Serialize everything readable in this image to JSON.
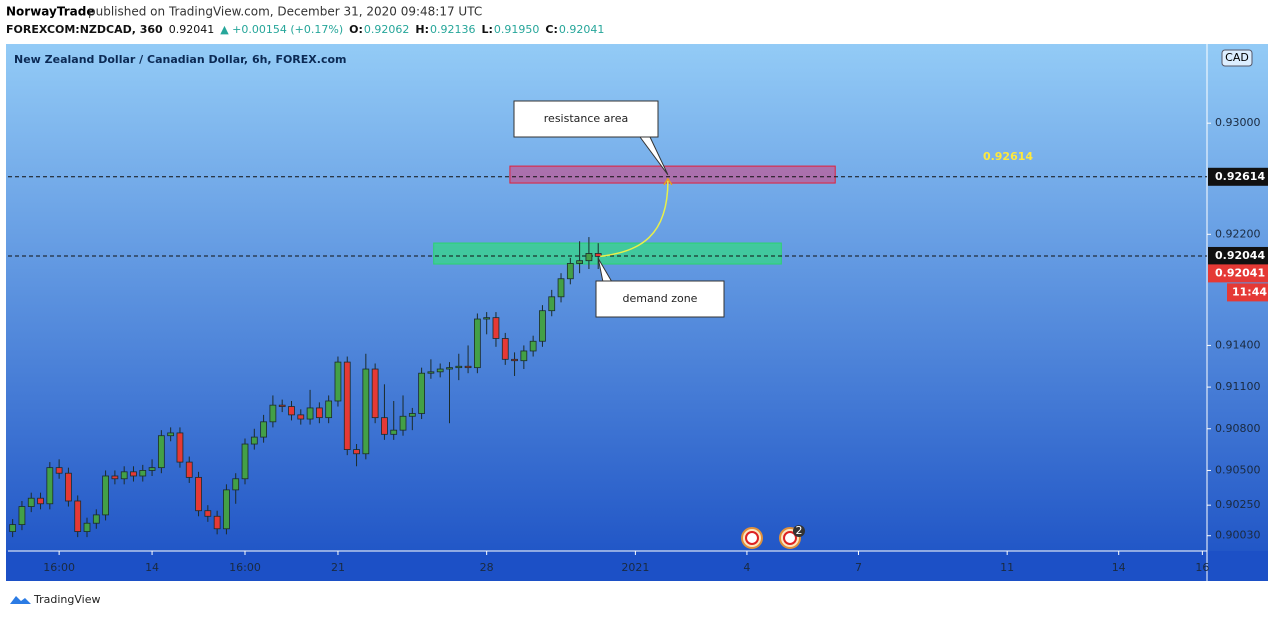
{
  "header": {
    "publisher": "NorwayTrade",
    "published": "published on TradingView.com, December 31, 2020 09:48:17 UTC",
    "symbol": "FOREXCOM:NZDCAD, 360",
    "last": "0.92041",
    "change": "▲ +0.00154 (+0.17%)",
    "o_label": "O:",
    "o": "0.92062",
    "h_label": "H:",
    "h": "0.92136",
    "l_label": "L:",
    "l": "0.91950",
    "c_label": "C:",
    "c": "0.92041"
  },
  "footer": {
    "brand": "TradingView"
  },
  "chart_data": {
    "type": "candlestick",
    "title": "New Zealand Dollar / Canadian Dollar, 6h, FOREX.com",
    "currency": "CAD",
    "up_color": "#43a047",
    "down_color": "#e53935",
    "open": [
      0.9006,
      0.9011,
      0.9024,
      0.903,
      0.9026,
      0.9052,
      0.9048,
      0.9028,
      0.9006,
      0.9012,
      0.9018,
      0.9046,
      0.9044,
      0.9049,
      0.9046,
      0.905,
      0.9052,
      0.9075,
      0.9077,
      0.9056,
      0.9045,
      0.9021,
      0.9017,
      0.9008,
      0.9036,
      0.9044,
      0.9069,
      0.9074,
      0.9085,
      0.9097,
      0.9096,
      0.909,
      0.9087,
      0.9095,
      0.9088,
      0.91,
      0.9128,
      0.9065,
      0.9062,
      0.9123,
      0.9088,
      0.9076,
      0.9079,
      0.9089,
      0.9091,
      0.912,
      0.9121,
      0.9123,
      0.9124,
      0.9125,
      0.9124,
      0.9159,
      0.916,
      0.9145,
      0.913,
      0.9129,
      0.9136,
      0.9143,
      0.9165,
      0.9175,
      0.9188,
      0.9199,
      0.9201,
      0.92062
    ],
    "high": [
      0.9015,
      0.9028,
      0.9034,
      0.9034,
      0.9056,
      0.9058,
      0.9052,
      0.9032,
      0.9016,
      0.9022,
      0.905,
      0.905,
      0.9053,
      0.9053,
      0.9054,
      0.9058,
      0.9079,
      0.9081,
      0.9081,
      0.906,
      0.9049,
      0.9025,
      0.9021,
      0.904,
      0.9048,
      0.9073,
      0.908,
      0.909,
      0.9104,
      0.9101,
      0.91,
      0.9094,
      0.9108,
      0.9099,
      0.9104,
      0.9132,
      0.9132,
      0.9069,
      0.9134,
      0.9127,
      0.9112,
      0.91,
      0.9104,
      0.9095,
      0.9124,
      0.913,
      0.9127,
      0.9128,
      0.9134,
      0.914,
      0.9163,
      0.9164,
      0.9164,
      0.9149,
      0.9135,
      0.914,
      0.9147,
      0.9169,
      0.918,
      0.9192,
      0.9203,
      0.9215,
      0.9218,
      0.92136
    ],
    "low": [
      0.9002,
      0.9007,
      0.902,
      0.9022,
      0.9022,
      0.9044,
      0.9024,
      0.9002,
      0.9002,
      0.9008,
      0.9014,
      0.904,
      0.904,
      0.9042,
      0.9042,
      0.9046,
      0.9048,
      0.9071,
      0.9052,
      0.9041,
      0.9017,
      0.9013,
      0.9004,
      0.9004,
      0.9026,
      0.904,
      0.9065,
      0.907,
      0.9081,
      0.9092,
      0.9086,
      0.9083,
      0.9083,
      0.9084,
      0.9084,
      0.9096,
      0.9061,
      0.9053,
      0.9058,
      0.9084,
      0.9072,
      0.9072,
      0.9075,
      0.9079,
      0.9087,
      0.9116,
      0.9117,
      0.9084,
      0.9115,
      0.912,
      0.912,
      0.9148,
      0.9139,
      0.9126,
      0.9118,
      0.9123,
      0.9132,
      0.9139,
      0.9161,
      0.9171,
      0.9184,
      0.9192,
      0.9195,
      0.9195
    ],
    "close": [
      0.9011,
      0.9024,
      0.903,
      0.9026,
      0.9052,
      0.9048,
      0.9028,
      0.9006,
      0.9012,
      0.9018,
      0.9046,
      0.9044,
      0.9049,
      0.9046,
      0.905,
      0.9052,
      0.9075,
      0.9077,
      0.9056,
      0.9045,
      0.9021,
      0.9017,
      0.9008,
      0.9036,
      0.9044,
      0.9069,
      0.9074,
      0.9085,
      0.9097,
      0.9096,
      0.909,
      0.9087,
      0.9095,
      0.9088,
      0.91,
      0.9128,
      0.9065,
      0.9062,
      0.9123,
      0.9088,
      0.9076,
      0.9079,
      0.9089,
      0.9091,
      0.912,
      0.9121,
      0.9123,
      0.9124,
      0.9125,
      0.9124,
      0.9159,
      0.916,
      0.9145,
      0.913,
      0.9129,
      0.9136,
      0.9143,
      0.9165,
      0.9175,
      0.9188,
      0.9199,
      0.9201,
      0.92062,
      0.92041
    ],
    "xlim": [
      -0.5,
      128.5
    ],
    "xticks": [
      {
        "value": 5,
        "label": "16:00"
      },
      {
        "value": 15,
        "label": "14"
      },
      {
        "value": 25,
        "label": "16:00"
      },
      {
        "value": 35,
        "label": "21"
      },
      {
        "value": 51,
        "label": "28"
      },
      {
        "value": 67,
        "label": "2021"
      },
      {
        "value": 79,
        "label": "4"
      },
      {
        "value": 91,
        "label": "7"
      },
      {
        "value": 107,
        "label": "11"
      },
      {
        "value": 119,
        "label": "14"
      },
      {
        "value": 128,
        "label": "16"
      }
    ],
    "ylim": [
      0.8992,
      0.9357
    ],
    "yticks": [
      {
        "value": 0.9003,
        "label": "0.90030"
      },
      {
        "value": 0.9025,
        "label": "0.90250"
      },
      {
        "value": 0.905,
        "label": "0.90500"
      },
      {
        "value": 0.908,
        "label": "0.90800"
      },
      {
        "value": 0.911,
        "label": "0.91100"
      },
      {
        "value": 0.914,
        "label": "0.91400"
      },
      {
        "value": 0.922,
        "label": "0.92200"
      },
      {
        "value": 0.93,
        "label": "0.93000"
      }
    ],
    "horizontal_lines": [
      {
        "value": 0.92614,
        "label": "0.92614"
      },
      {
        "value": 0.92044,
        "label": "0.92044"
      }
    ],
    "last_price": {
      "value": 0.92041,
      "label": "0.92041"
    },
    "countdown": "11:44",
    "zones": [
      {
        "label": "resistance area",
        "x": [
          53.5,
          88.5
        ],
        "y": [
          0.92569,
          0.92691
        ],
        "color": "#c8508c"
      },
      {
        "label": "demand zone",
        "x": [
          45.3,
          82.7
        ],
        "y": [
          0.91986,
          0.92137
        ],
        "color": "#2ee07a"
      }
    ],
    "event_badge": "2"
  }
}
